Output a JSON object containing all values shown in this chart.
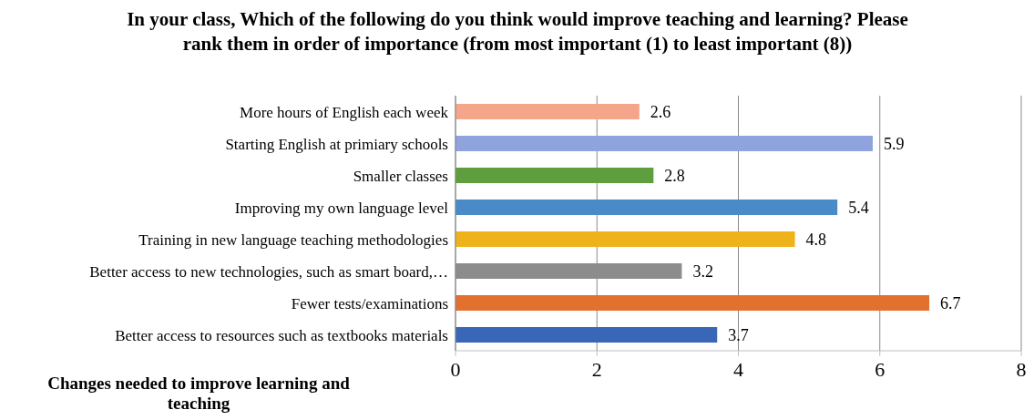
{
  "chart_data": {
    "type": "bar",
    "orientation": "horizontal",
    "title": "In your class, Which of the following do you think would improve teaching and learning?  Please rank them in order of importance (from most important (1) to least important (8))",
    "ylabel": "Changes needed to improve learning and teaching",
    "categories": [
      "More hours of English each week",
      "Starting English at primiary schools",
      "Smaller classes",
      "Improving my own language level ",
      "Training in new language teaching methodologies",
      "Better access to new technologies, such as smart board,…",
      "Fewer tests/examinations",
      "Better access to resources such as textbooks materials"
    ],
    "values": [
      2.6,
      5.9,
      2.8,
      5.4,
      4.8,
      3.2,
      6.7,
      3.7
    ],
    "colors": [
      "#f4a58a",
      "#8fa3dc",
      "#5f9e3f",
      "#4a8ac8",
      "#f0b21a",
      "#8c8c8c",
      "#e2702f",
      "#3a66b8"
    ],
    "xlim": [
      0,
      8
    ],
    "xticks": [
      0,
      2,
      4,
      6,
      8
    ],
    "grid": "x",
    "data_labels": true
  }
}
